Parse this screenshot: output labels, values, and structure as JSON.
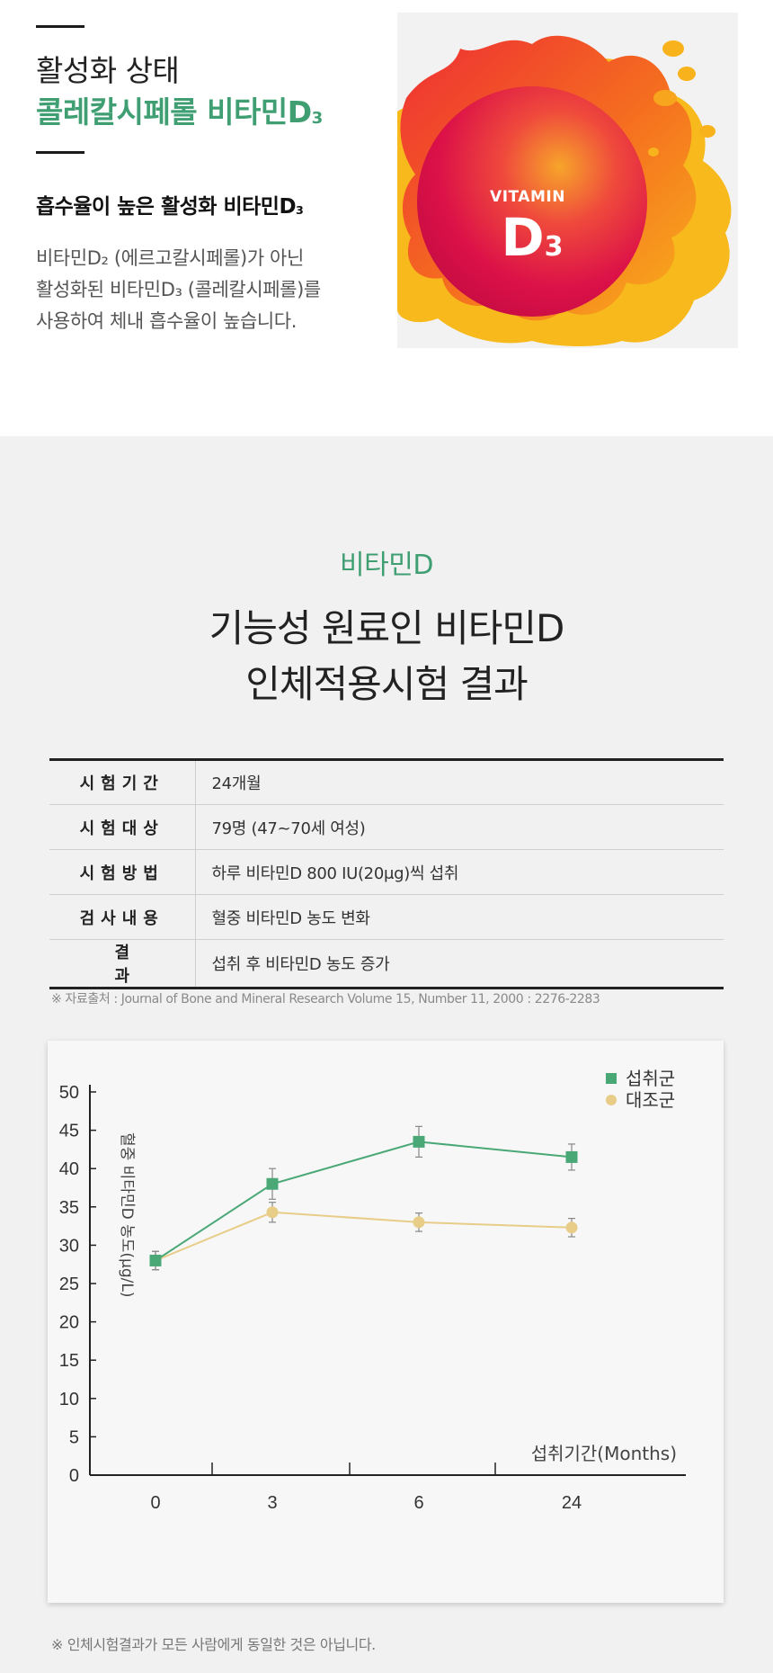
{
  "intro": {
    "heading_line1": "활성화 상태",
    "heading_line2_main": "콜레칼시페롤 비타민D",
    "heading_line2_sub": "3",
    "subheading_main": "흡수율이 높은 활성화 비타민D",
    "subheading_sub": "3",
    "description": [
      "비타민D₂ (에르고칼시페롤)가 아닌",
      "활성화된 비타민D₃ (콜레칼시페롤)를",
      "사용하여 체내 흡수율이 높습니다."
    ],
    "badge": {
      "word": "VITAMIN",
      "letter": "D",
      "sub": "3"
    },
    "colors": {
      "green": "#3f9f72",
      "sun_red": "#e0184a",
      "sun_orange": "#f57a1f",
      "sun_yellow": "#f7b91c"
    }
  },
  "section": {
    "kicker": "비타민D",
    "title_line1": "기능성 원료인 비타민D",
    "title_line2": "인체적용시험 결과"
  },
  "trial_table": [
    {
      "key": "시험기간",
      "value": "24개월"
    },
    {
      "key": "시험대상",
      "value": "79명 (47~70세 여성)"
    },
    {
      "key": "시험방법",
      "value": "하루 비타민D 800 IU(20μg)씩 섭취"
    },
    {
      "key": "검사내용",
      "value": "혈중 비타민D 농도 변화"
    },
    {
      "key": "결과",
      "value": "섭취 후 비타민D 농도 증가"
    }
  ],
  "source_note": "※ 자료출처 : Journal of Bone and Mineral Research Volume 15, Number 11, 2000 : 2276-2283",
  "chart_data": {
    "type": "line",
    "categories": [
      "0",
      "3",
      "6",
      "24"
    ],
    "xlabel": "섭취기간(Months)",
    "ylabel": "혈중 비타민D 농도(μg/L)",
    "ylim": [
      0,
      50
    ],
    "yticks": [
      0,
      5,
      10,
      15,
      20,
      25,
      30,
      35,
      40,
      45,
      50
    ],
    "grid": false,
    "legend": "top-right",
    "series": [
      {
        "name": "섭취군",
        "color": "#4aa877",
        "marker": "square",
        "values": [
          28,
          38,
          43.5,
          41.5
        ],
        "error": [
          1.2,
          2,
          2,
          1.7
        ]
      },
      {
        "name": "대조군",
        "color": "#e8cd88",
        "marker": "circle",
        "values": [
          28,
          34.3,
          33,
          32.3
        ],
        "error": [
          1.2,
          1.3,
          1.2,
          1.2
        ]
      }
    ]
  },
  "footnote": "※ 인체시험결과가 모든 사람에게 동일한 것은 아닙니다."
}
